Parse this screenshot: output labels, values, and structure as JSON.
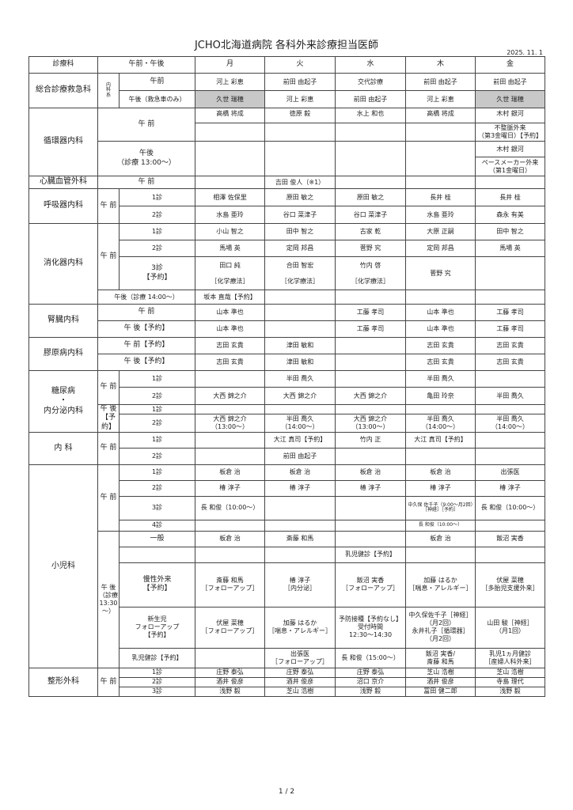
{
  "title": "JCHO北海道病院 各科外来診療担当医師",
  "date": "2025. 11. 1",
  "page": "1 / 2",
  "head": {
    "dept": "診療科",
    "session": "午前・午後",
    "days": [
      "月",
      "火",
      "水",
      "木",
      "金"
    ]
  },
  "sogo": {
    "dept": "総合診療救急科",
    "sub": "内\n科\n系",
    "am_label": "午前",
    "am": [
      "河上 彩恵",
      "前田 由起子",
      "交代診療",
      "前田 由起子",
      "前田 由起子"
    ],
    "pm_label": "午後（救急車のみ）",
    "pm": [
      "久世 瑞穂",
      "河上 彩恵",
      "前田 由起子",
      "河上 彩恵",
      "久世 瑞穂"
    ]
  },
  "junkan": {
    "dept": "循環器内科",
    "am_label": "午 前",
    "am1": [
      "高橋 将成",
      "徳原 毅",
      "水上 和也",
      "高橋 将成",
      "木村 銀河"
    ],
    "am2_fri": "不整脈外来\n（第3金曜日）【予約】",
    "pm_label": "午後\n（診療 13:00〜）",
    "pm1_fri": "木村 銀河",
    "pm2_fri": "ペースメーカー外来\n（第1金曜日）"
  },
  "shinzo": {
    "dept": "心臓血管外科",
    "am_label": "午 前",
    "am": [
      "",
      "吉田 俊人（※1）",
      "",
      "",
      ""
    ]
  },
  "kokyu": {
    "dept": "呼吸器内科",
    "am_label": "午 前",
    "r1_label": "1診",
    "r1": [
      "相澤 佐保里",
      "原田 敏之",
      "原田 敏之",
      "長井 桂",
      "長井 桂"
    ],
    "r2_label": "2診",
    "r2": [
      "水島 亜玲",
      "谷口 菜津子",
      "谷口 菜津子",
      "水島 亜玲",
      "森永 有美"
    ]
  },
  "shoka": {
    "dept": "消化器内科",
    "am_label": "午 前",
    "r1_label": "1診",
    "r1": [
      "小山 智之",
      "田中 智之",
      "古家 乾",
      "大原 正嗣",
      "田中 智之"
    ],
    "r2_label": "2診",
    "r2": [
      "馬場 英",
      "定岡 邦昌",
      "菅野 究",
      "定岡 邦昌",
      "馬場 英"
    ],
    "r3_label": "3診\n【予約】",
    "r3": [
      "田口 純\n\n［化学療法］",
      "合田 智宏\n\n［化学療法］",
      "竹内 啓\n\n［化学療法］",
      "菅野 究",
      ""
    ],
    "pm_label": "午後（診療 14:00〜）",
    "pm": [
      "坂本 直哉【予約】",
      "",
      "",
      "",
      ""
    ]
  },
  "jinzo": {
    "dept": "腎臓内科",
    "am_label": "午 前",
    "am": [
      "山本 準也",
      "",
      "工藤 孝司",
      "山本 準也",
      "工藤 孝司"
    ],
    "pm_label": "午 後【予約】",
    "pm": [
      "山本 準也",
      "",
      "工藤 孝司",
      "山本 準也",
      "工藤 孝司"
    ]
  },
  "kogen": {
    "dept": "膠原病内科",
    "am_label": "午 前【予約】",
    "am": [
      "志田 玄貴",
      "津田 敏和",
      "",
      "志田 玄貴",
      "志田 玄貴"
    ],
    "pm_label": "午 後【予約】",
    "pm": [
      "志田 玄貴",
      "津田 敏和",
      "",
      "志田 玄貴",
      "志田 玄貴"
    ]
  },
  "tonyo": {
    "dept": "糖尿病\n・\n内分泌内科",
    "am_label": "午 前",
    "am1_label": "1診",
    "am1": [
      "",
      "半田 喬久",
      "",
      "半田 喬久",
      ""
    ],
    "am2_label": "2診",
    "am2": [
      "大西 錦之介",
      "大西 錦之介",
      "大西 錦之介",
      "亀田 玲奈",
      "半田 喬久"
    ],
    "pm_label": "午 後\n【予約】",
    "pm1_label": "1診",
    "pm2_label": "2診",
    "pm2": [
      "大西 錦之介\n（13:00〜）",
      "半田 喬久\n（14:00〜）",
      "大西 錦之介\n（13:00〜）",
      "半田 喬久\n（14:00〜）",
      "半田 喬久\n（14:00〜）"
    ]
  },
  "naika": {
    "dept": "内 科",
    "am_label": "午 前",
    "r1_label": "1診",
    "r1": [
      "",
      "大江 真司【予約】",
      "竹内 正",
      "大江 真司【予約】",
      ""
    ],
    "r2_label": "2診",
    "r2": [
      "",
      "前田 由起子",
      "",
      "",
      ""
    ]
  },
  "shoni": {
    "dept": "小児科",
    "am_label": "午 前",
    "a1_label": "1診",
    "a1": [
      "板倉 治",
      "板倉 治",
      "板倉 治",
      "板倉 治",
      "出張医"
    ],
    "a2_label": "2診",
    "a2": [
      "椿 淳子",
      "椿 淳子",
      "椿 淳子",
      "椿 淳子",
      "椿 淳子"
    ],
    "a3_label": "3診",
    "a3": [
      "長 和俊（10:00〜）",
      "",
      "",
      "中久保 佐千子（9:00〜月2回）［神経］［予約］",
      "長 和俊（10:00〜）"
    ],
    "a4_label": "4診",
    "a4": [
      "",
      "",
      "",
      "長 和俊（10:00〜）",
      ""
    ],
    "pm_label": "午 後\n（診療\n13:30\n〜）",
    "p1_label": "一般",
    "p1": [
      "板倉 治",
      "斎藤 和馬",
      "",
      "板倉 治",
      "飯沼 実香"
    ],
    "p2": [
      "",
      "",
      "乳児健診【予約】",
      "",
      ""
    ],
    "p3_label": "慢性外来\n【予約】",
    "p3": [
      "斎藤 和馬\n［フォローアップ］",
      "椿 淳子\n［内分泌］",
      "飯沼 実香\n［フォローアップ］",
      "加藤 はるか\n［喘息・アレルギー］",
      "伏屋 菜穂\n［多胎児支援外来］"
    ],
    "p4_label": "新生児\nフォローアップ\n【予約】",
    "p4": [
      "伏屋 菜穂\n［フォローアップ］",
      "加藤 はるか\n［喘息・アレルギー］",
      "予防接種【予約なし】\n受付時間\n12:30〜14:30",
      "中久保佐千子［神経］\n（月2回）\n永井礼子［循環器］\n（月2回）",
      "山田 駿［神経］\n（月1回）"
    ],
    "p5_label": "乳児健診【予約】",
    "p5": [
      "",
      "出張医\n［フォローアップ］",
      "長 和俊（15:00〜）",
      "飯沼 実香/\n斎藤 和馬",
      "乳児1ヵ月健診\n［産婦人科外来］"
    ]
  },
  "seikei": {
    "dept": "整形外科",
    "am_label": "午 前",
    "r1_label": "1診",
    "r1": [
      "庄野 泰弘",
      "庄野 泰弘",
      "庄野 泰弘",
      "芝山 浩樹",
      "芝山 浩樹"
    ],
    "r2_label": "2診",
    "r2": [
      "酒井 俊彦",
      "酒井 俊彦",
      "沼口 京介",
      "酒井 俊彦",
      "寺島 理代"
    ],
    "r3_label": "3診",
    "r3": [
      "浅野 毅",
      "芝山 浩樹",
      "浅野 毅",
      "冨田 健二郎",
      "浅野 毅"
    ]
  },
  "colors": {
    "highlight": "#c8c8c8",
    "border": "#444444"
  }
}
